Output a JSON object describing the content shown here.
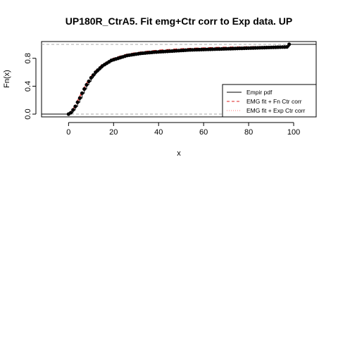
{
  "chart_data": {
    "type": "line",
    "title": "UP180R_CtrA5. Fit emg+Ctr corr to Exp data. UP",
    "xlabel": "x",
    "ylabel": "Fn(x)",
    "xlim": [
      -12,
      110
    ],
    "ylim": [
      -0.04,
      1.04
    ],
    "xticks": [
      0,
      20,
      40,
      60,
      80,
      100
    ],
    "yticks": [
      0.0,
      0.4,
      0.8
    ],
    "ytick_labels": [
      "0.0",
      "0.4",
      "0.8"
    ],
    "reference_lines_y": [
      0,
      1
    ],
    "grid": false,
    "legend_position": "bottom-right",
    "series": [
      {
        "name": "Empir pdf",
        "style": "step-points",
        "color": "#000000",
        "x": [
          0,
          1,
          2,
          3,
          4,
          5,
          6,
          7,
          8,
          9,
          10,
          11,
          12,
          13,
          14,
          15,
          16,
          17,
          18,
          19,
          20,
          21,
          22,
          23,
          24,
          25,
          26,
          27,
          28,
          29,
          30,
          31,
          32,
          33,
          34,
          35,
          36,
          37,
          38,
          39,
          40,
          41,
          42,
          43,
          44,
          45,
          46,
          47,
          48,
          49,
          50,
          51,
          52,
          53,
          54,
          55,
          56,
          57,
          58,
          59,
          60,
          61,
          62,
          63,
          64,
          65,
          66,
          67,
          68,
          69,
          70,
          71,
          72,
          73,
          74,
          75,
          76,
          77,
          78,
          79,
          80,
          81,
          82,
          83,
          84,
          85,
          86,
          87,
          88,
          89,
          90,
          91,
          92,
          93,
          94,
          95,
          96,
          97,
          98
        ],
        "y": [
          0.0,
          0.02,
          0.06,
          0.11,
          0.17,
          0.23,
          0.3,
          0.36,
          0.42,
          0.47,
          0.52,
          0.56,
          0.6,
          0.63,
          0.66,
          0.69,
          0.71,
          0.73,
          0.75,
          0.77,
          0.78,
          0.79,
          0.8,
          0.81,
          0.82,
          0.83,
          0.84,
          0.845,
          0.85,
          0.855,
          0.86,
          0.865,
          0.87,
          0.873,
          0.876,
          0.879,
          0.882,
          0.885,
          0.888,
          0.89,
          0.892,
          0.894,
          0.896,
          0.898,
          0.9,
          0.902,
          0.904,
          0.906,
          0.908,
          0.91,
          0.912,
          0.914,
          0.916,
          0.918,
          0.92,
          0.921,
          0.922,
          0.923,
          0.924,
          0.925,
          0.926,
          0.927,
          0.928,
          0.929,
          0.93,
          0.931,
          0.932,
          0.933,
          0.934,
          0.935,
          0.936,
          0.937,
          0.938,
          0.939,
          0.94,
          0.941,
          0.942,
          0.943,
          0.944,
          0.945,
          0.946,
          0.947,
          0.948,
          0.949,
          0.95,
          0.951,
          0.952,
          0.953,
          0.954,
          0.955,
          0.956,
          0.957,
          0.958,
          0.959,
          0.96,
          0.961,
          0.962,
          0.963,
          1.0
        ]
      },
      {
        "name": "EMG fit + Fn Ctr corr",
        "style": "dashed",
        "color": "#dd2222",
        "x": [
          0,
          2,
          4,
          6,
          8,
          10,
          12,
          15,
          20,
          25,
          30,
          35,
          40,
          45,
          50,
          55,
          60,
          65,
          70,
          75,
          80,
          85,
          90,
          95,
          97
        ],
        "y": [
          0.0,
          0.07,
          0.19,
          0.32,
          0.44,
          0.54,
          0.62,
          0.71,
          0.8,
          0.85,
          0.88,
          0.9,
          0.915,
          0.925,
          0.935,
          0.942,
          0.948,
          0.953,
          0.957,
          0.961,
          0.964,
          0.966,
          0.968,
          0.969,
          0.97
        ]
      },
      {
        "name": "EMG fit + Exp Ctr corr",
        "style": "dotted",
        "color": "#ff7777",
        "x": [
          0,
          2,
          4,
          6,
          8,
          10,
          12,
          15,
          20,
          25,
          30,
          35,
          40,
          45,
          50,
          55,
          60,
          65,
          70,
          75,
          80,
          85,
          90,
          95,
          97
        ],
        "y": [
          0.0,
          0.06,
          0.17,
          0.3,
          0.42,
          0.52,
          0.6,
          0.69,
          0.78,
          0.83,
          0.86,
          0.885,
          0.9,
          0.91,
          0.92,
          0.928,
          0.935,
          0.94,
          0.945,
          0.949,
          0.952,
          0.955,
          0.957,
          0.959,
          0.96
        ]
      }
    ]
  }
}
